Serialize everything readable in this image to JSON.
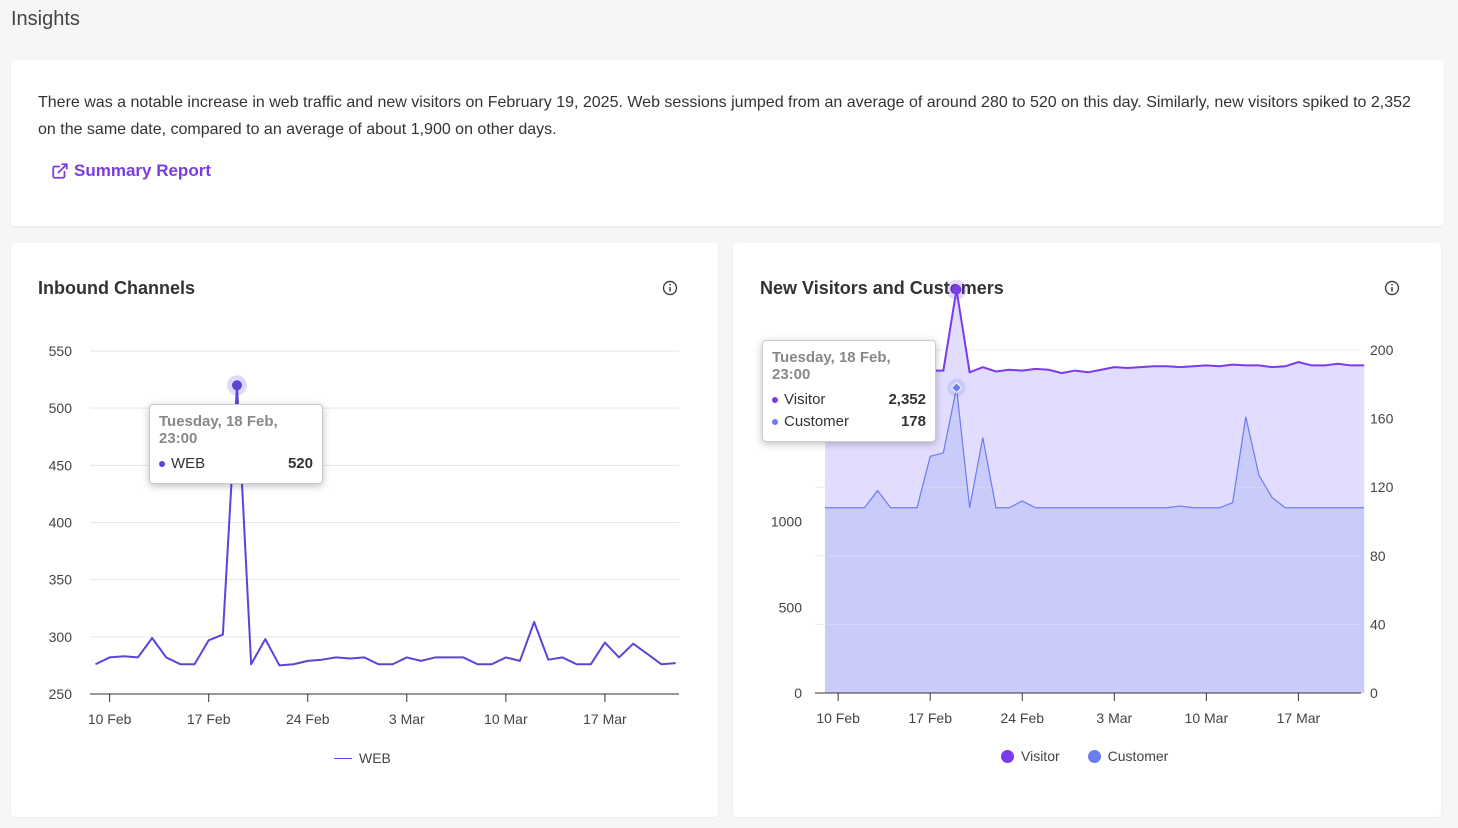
{
  "page": {
    "title": "Insights"
  },
  "insight": {
    "text": "There was a notable increase in web traffic and new visitors on February 19, 2025. Web sessions jumped from an average of around 280 to 520 on this day. Similarly, new visitors spiked to 2,352 on the same date, compared to an average of about 1,900 on other days.",
    "link_label": "Summary Report",
    "link_icon": "external-link-icon"
  },
  "colors": {
    "accent": "#7a3ce0",
    "web": "#5b45d8",
    "visitor": "#7c3aed",
    "visitor_fill": "#ddd6fe",
    "customer": "#6b7cf0",
    "customer_fill": "#c7c9fa"
  },
  "inbound": {
    "title": "Inbound Channels",
    "tooltip": {
      "title": "Tuesday, 18 Feb, 23:00",
      "series": "WEB",
      "value": "520"
    },
    "legend": "WEB"
  },
  "visitors": {
    "title": "New Visitors and Customers",
    "tooltip": {
      "title": "Tuesday, 18 Feb, 23:00",
      "rows": [
        {
          "label": "Visitor",
          "value": "2,352"
        },
        {
          "label": "Customer",
          "value": "178"
        }
      ]
    },
    "legend": [
      "Visitor",
      "Customer"
    ]
  },
  "chart_data": [
    {
      "type": "line",
      "title": "Inbound Channels",
      "x_tick_labels": [
        "10 Feb",
        "17 Feb",
        "24 Feb",
        "3 Mar",
        "10 Mar",
        "17 Mar"
      ],
      "x_start": "2025-02-09",
      "ylim": [
        250,
        550
      ],
      "yticks": [
        250,
        300,
        350,
        400,
        450,
        500,
        550
      ],
      "grid": true,
      "legend_position": "bottom",
      "series": [
        {
          "name": "WEB",
          "values": [
            276,
            282,
            283,
            282,
            299,
            282,
            276,
            276,
            297,
            302,
            520,
            276,
            298,
            275,
            276,
            279,
            280,
            282,
            281,
            282,
            276,
            276,
            282,
            279,
            282,
            282,
            282,
            276,
            276,
            282,
            279,
            313,
            280,
            282,
            276,
            276,
            295,
            282,
            294,
            285,
            276,
            277
          ]
        }
      ]
    },
    {
      "type": "area",
      "title": "New Visitors and Customers",
      "x_tick_labels": [
        "10 Feb",
        "17 Feb",
        "24 Feb",
        "3 Mar",
        "10 Mar",
        "17 Mar"
      ],
      "x_start": "2025-02-09",
      "ylim_left": [
        0,
        2000
      ],
      "yticks_left": [
        0,
        500,
        1000,
        1500
      ],
      "ylim_right": [
        0,
        200
      ],
      "yticks_right": [
        0,
        40,
        80,
        120,
        160,
        200
      ],
      "grid": true,
      "legend_position": "bottom",
      "series": [
        {
          "name": "Visitor",
          "axis": "left",
          "values": [
            1820,
            1835,
            1845,
            1855,
            1900,
            1880,
            1870,
            1885,
            1880,
            1880,
            2352,
            1870,
            1900,
            1875,
            1885,
            1880,
            1890,
            1885,
            1865,
            1880,
            1870,
            1885,
            1900,
            1895,
            1900,
            1905,
            1905,
            1900,
            1905,
            1910,
            1905,
            1915,
            1910,
            1910,
            1900,
            1905,
            1930,
            1910,
            1910,
            1920,
            1910,
            1910
          ]
        },
        {
          "name": "Customer",
          "axis": "right",
          "values": [
            108,
            108,
            108,
            108,
            118,
            108,
            108,
            108,
            138,
            140,
            178,
            108,
            149,
            108,
            108,
            112,
            108,
            108,
            108,
            108,
            108,
            108,
            108,
            108,
            108,
            108,
            108,
            109,
            108,
            108,
            108,
            111,
            161,
            127,
            114,
            108,
            108,
            108,
            108,
            108,
            108,
            108
          ]
        }
      ]
    }
  ]
}
